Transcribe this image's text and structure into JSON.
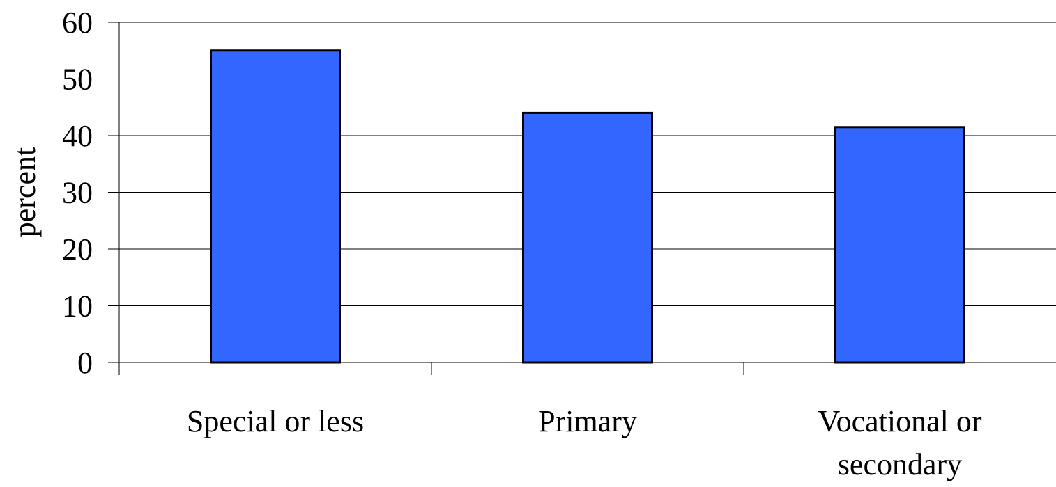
{
  "chart_data": {
    "type": "bar",
    "categories": [
      [
        "Special or less"
      ],
      [
        "Primary"
      ],
      [
        "Vocational or",
        "secondary"
      ]
    ],
    "values": [
      55,
      44,
      41.5
    ],
    "title": "",
    "xlabel": "",
    "ylabel": "percent",
    "ylim": [
      0,
      60
    ],
    "yticks": [
      0,
      10,
      20,
      30,
      40,
      50,
      60
    ],
    "grid": true,
    "legend": "none",
    "bar_color": "#3366FF",
    "bar_edge_color": "#000000"
  }
}
